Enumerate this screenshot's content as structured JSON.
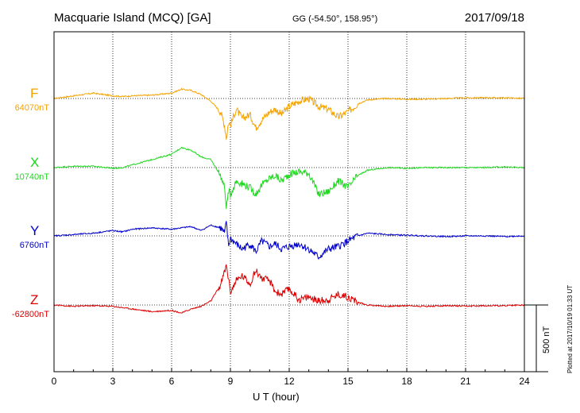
{
  "header": {
    "title": "Macquarie Island (MCQ)  [GA]",
    "coords": "GG (-54.50°, 158.95°)",
    "date": "2017/09/18"
  },
  "footer": {
    "plotted": "Plotted at 2017/10/19 01:33 UT"
  },
  "colors": {
    "F": "#f5a300",
    "X": "#1fd81f",
    "Y": "#0000cc",
    "Z": "#dd0000"
  },
  "chart_data": {
    "type": "line",
    "title": "",
    "xlabel": "U T (hour)",
    "xlim": [
      0,
      24
    ],
    "xticks": [
      "0",
      "3",
      "6",
      "9",
      "12",
      "15",
      "18",
      "21",
      "24"
    ],
    "grid": true,
    "scale_bar": "500 nT",
    "components": [
      {
        "name": "F",
        "baseline": "64070nT",
        "baseline_value": 64070
      },
      {
        "name": "X",
        "baseline": "10740nT",
        "baseline_value": 10740
      },
      {
        "name": "Y",
        "baseline": "6760nT",
        "baseline_value": 6760
      },
      {
        "name": "Z",
        "baseline": "-62800nT",
        "baseline_value": -62800
      }
    ],
    "series": [
      {
        "name": "F",
        "x": [
          0,
          1,
          2,
          3,
          3.5,
          4,
          5,
          6,
          6.5,
          7,
          7.5,
          8,
          8.5,
          8.7,
          8.8,
          8.9,
          9,
          9.3,
          9.6,
          10,
          10.3,
          10.6,
          11,
          11.3,
          11.6,
          12,
          12.5,
          13,
          13.5,
          14,
          14.5,
          15,
          15.5,
          16,
          17,
          18,
          19,
          20,
          21,
          22,
          23,
          24
        ],
        "values": [
          0,
          20,
          40,
          20,
          15,
          20,
          25,
          40,
          70,
          60,
          30,
          -20,
          -100,
          -200,
          -300,
          -180,
          -200,
          -80,
          -150,
          -120,
          -220,
          -160,
          -100,
          -80,
          -120,
          -60,
          -20,
          0,
          -60,
          -80,
          -140,
          -100,
          -40,
          -10,
          0,
          -5,
          -5,
          0,
          5,
          5,
          5,
          0
        ]
      },
      {
        "name": "X",
        "x": [
          0,
          1,
          2,
          3,
          3.5,
          4,
          5,
          6,
          6.5,
          7,
          7.5,
          8,
          8.5,
          8.7,
          8.8,
          8.9,
          9,
          9.3,
          9.6,
          10,
          10.3,
          10.6,
          11,
          11.3,
          11.6,
          12,
          12.5,
          13,
          13.5,
          14,
          14.5,
          15,
          15.5,
          16,
          17,
          18,
          19,
          20,
          21,
          22,
          23,
          24
        ],
        "values": [
          0,
          10,
          10,
          -5,
          0,
          20,
          60,
          100,
          150,
          130,
          80,
          60,
          -60,
          -150,
          -300,
          -180,
          -200,
          -100,
          -120,
          -150,
          -200,
          -130,
          -80,
          -60,
          -100,
          -50,
          -30,
          -40,
          -200,
          -180,
          -100,
          -150,
          -60,
          -20,
          0,
          -5,
          0,
          0,
          0,
          0,
          5,
          0
        ]
      },
      {
        "name": "Y",
        "x": [
          0,
          1,
          2,
          3,
          3.5,
          4,
          5,
          6,
          6.5,
          7,
          7.5,
          8,
          8.5,
          8.7,
          8.8,
          8.9,
          9,
          9.3,
          9.6,
          10,
          10.3,
          10.6,
          11,
          11.3,
          11.6,
          12,
          12.5,
          13,
          13.5,
          14,
          14.5,
          15,
          15.5,
          16,
          17,
          18,
          19,
          20,
          21,
          22,
          23,
          24
        ],
        "values": [
          0,
          10,
          20,
          40,
          30,
          50,
          60,
          50,
          60,
          70,
          40,
          80,
          60,
          20,
          100,
          -80,
          -20,
          -60,
          -100,
          -60,
          -120,
          -40,
          -80,
          -60,
          -100,
          -80,
          -60,
          -100,
          -160,
          -100,
          -80,
          -40,
          0,
          20,
          10,
          5,
          0,
          -5,
          0,
          0,
          -5,
          0
        ]
      },
      {
        "name": "Z",
        "x": [
          0,
          1,
          2,
          3,
          3.5,
          4,
          5,
          6,
          6.5,
          7,
          7.5,
          8,
          8.5,
          8.7,
          8.8,
          8.9,
          9,
          9.3,
          9.6,
          10,
          10.3,
          10.6,
          11,
          11.3,
          11.6,
          12,
          12.5,
          13,
          13.5,
          14,
          14.5,
          15,
          15.5,
          16,
          17,
          18,
          19,
          20,
          21,
          22,
          23,
          24
        ],
        "values": [
          0,
          -10,
          -5,
          -10,
          -20,
          -30,
          -50,
          -40,
          -60,
          -30,
          -10,
          30,
          150,
          250,
          300,
          200,
          100,
          180,
          220,
          160,
          260,
          200,
          180,
          100,
          80,
          120,
          40,
          60,
          30,
          40,
          80,
          60,
          20,
          0,
          -10,
          -5,
          -10,
          -5,
          -10,
          -5,
          -5,
          0
        ]
      }
    ]
  }
}
